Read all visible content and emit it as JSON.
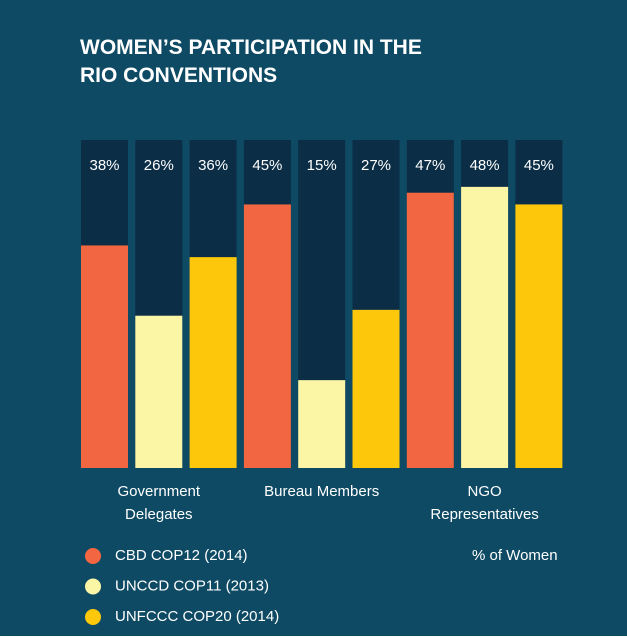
{
  "chart_data": {
    "type": "bar",
    "title": "WOMEN’S PARTICIPATION IN THE RIO CONVENTIONS",
    "categories": [
      "Government Delegates",
      "Bureau Members",
      "NGO Representatives"
    ],
    "series": [
      {
        "name": "CBD COP12 (2014)",
        "color": "#f26641",
        "values": [
          38,
          45,
          47
        ],
        "value_labels": [
          "38%",
          "45%",
          "47%"
        ]
      },
      {
        "name": "UNCCD COP11 (2013)",
        "color": "#fbf5a6",
        "values": [
          26,
          15,
          48
        ],
        "value_labels": [
          "26%",
          "15%",
          "48%"
        ]
      },
      {
        "name": "UNFCCC COP20 (2014)",
        "color": "#fdc80b",
        "values": [
          36,
          27,
          45
        ],
        "value_labels": [
          "36%",
          "27%",
          "45%"
        ]
      }
    ],
    "ylim": [
      0,
      56
    ],
    "annotation": "% of Women"
  }
}
